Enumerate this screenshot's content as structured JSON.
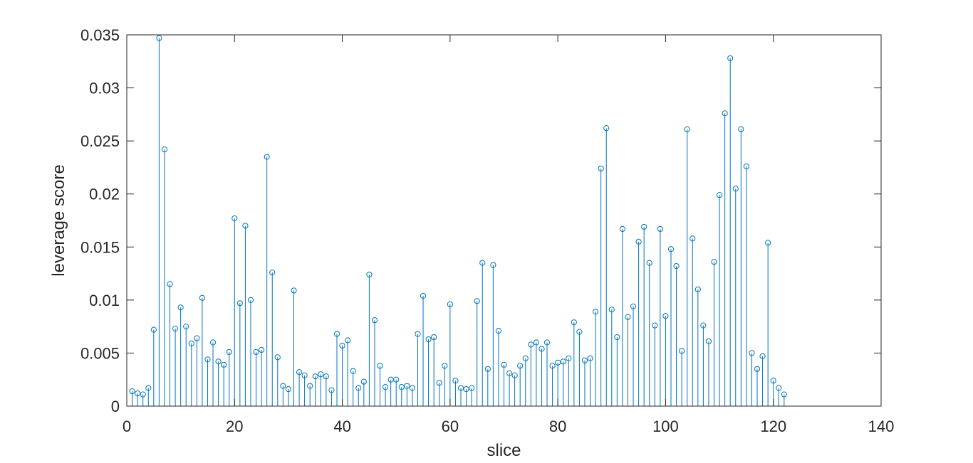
{
  "chart_data": {
    "type": "stem",
    "xlabel": "slice",
    "ylabel": "leverage score",
    "xlim": [
      0,
      140
    ],
    "ylim": [
      0,
      0.035
    ],
    "x_ticks": [
      0,
      20,
      40,
      60,
      80,
      100,
      120,
      140
    ],
    "y_ticks": [
      0,
      0.005,
      0.01,
      0.015,
      0.02,
      0.025,
      0.03,
      0.035
    ],
    "x_tick_labels": [
      "0",
      "20",
      "40",
      "60",
      "80",
      "100",
      "120",
      "140"
    ],
    "y_tick_labels": [
      "0",
      "0.005",
      "0.01",
      "0.015",
      "0.02",
      "0.025",
      "0.03",
      "0.035"
    ],
    "grid": false,
    "marker": "open-circle",
    "colors": {
      "series": "#0072BD",
      "axis": "#262626"
    },
    "series": [
      {
        "x": [
          1,
          2,
          3,
          4,
          5,
          6,
          7,
          8,
          9,
          10,
          11,
          12,
          13,
          14,
          15,
          16,
          17,
          18,
          19,
          20,
          21,
          22,
          23,
          24,
          25,
          26,
          27,
          28,
          29,
          30,
          31,
          32,
          33,
          34,
          35,
          36,
          37,
          38,
          39,
          40,
          41,
          42,
          43,
          44,
          45,
          46,
          47,
          48,
          49,
          50,
          51,
          52,
          53,
          54,
          55,
          56,
          57,
          58,
          59,
          60,
          61,
          62,
          63,
          64,
          65,
          66,
          67,
          68,
          69,
          70,
          71,
          72,
          73,
          74,
          75,
          76,
          77,
          78,
          79,
          80,
          81,
          82,
          83,
          84,
          85,
          86,
          87,
          88,
          89,
          90,
          91,
          92,
          93,
          94,
          95,
          96,
          97,
          98,
          99,
          100,
          101,
          102,
          103,
          104,
          105,
          106,
          107,
          108,
          109,
          110,
          111,
          112,
          113,
          114,
          115,
          116,
          117,
          118,
          119,
          120,
          121,
          122
        ],
        "values": [
          0.0014,
          0.0012,
          0.0011,
          0.0017,
          0.0072,
          0.0347,
          0.0242,
          0.0115,
          0.0073,
          0.0093,
          0.0075,
          0.0059,
          0.0064,
          0.0102,
          0.0044,
          0.006,
          0.0042,
          0.0039,
          0.0051,
          0.0177,
          0.0097,
          0.017,
          0.01,
          0.0051,
          0.0053,
          0.0235,
          0.0126,
          0.0046,
          0.0019,
          0.0016,
          0.0109,
          0.0032,
          0.0029,
          0.0019,
          0.0028,
          0.003,
          0.0028,
          0.0015,
          0.0068,
          0.0057,
          0.0062,
          0.0033,
          0.0017,
          0.0023,
          0.0124,
          0.0081,
          0.0038,
          0.0018,
          0.0025,
          0.0025,
          0.0018,
          0.0019,
          0.0017,
          0.0068,
          0.0104,
          0.0063,
          0.0065,
          0.0022,
          0.0038,
          0.0096,
          0.0024,
          0.0017,
          0.0016,
          0.0017,
          0.0099,
          0.0135,
          0.0035,
          0.0133,
          0.0071,
          0.0039,
          0.0031,
          0.0029,
          0.0038,
          0.0045,
          0.0058,
          0.006,
          0.0054,
          0.006,
          0.0038,
          0.0041,
          0.0042,
          0.0045,
          0.0079,
          0.007,
          0.0043,
          0.0045,
          0.0089,
          0.0224,
          0.0262,
          0.0091,
          0.0065,
          0.0167,
          0.0084,
          0.0094,
          0.0155,
          0.0169,
          0.0135,
          0.0076,
          0.0167,
          0.0085,
          0.0148,
          0.0132,
          0.0052,
          0.0261,
          0.0158,
          0.011,
          0.0076,
          0.0061,
          0.0136,
          0.0199,
          0.0276,
          0.0328,
          0.0205,
          0.0261,
          0.0226,
          0.005,
          0.0035,
          0.0047,
          0.0154,
          0.0024,
          0.0017,
          0.0011
        ]
      }
    ]
  }
}
